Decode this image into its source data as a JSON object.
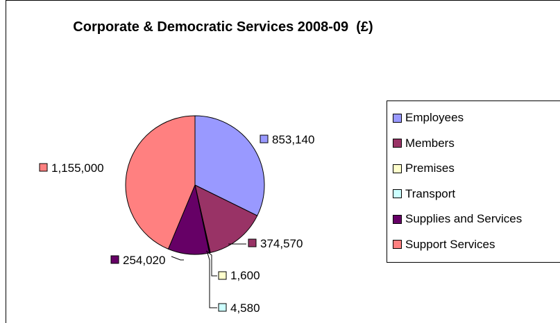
{
  "chart_data": {
    "type": "pie",
    "title": "Corporate & Democratic Services 2008-09  (£)",
    "slices": [
      {
        "label": "Employees",
        "value": 853140,
        "value_label": "853,140",
        "color": "#9999ff"
      },
      {
        "label": "Members",
        "value": 374570,
        "value_label": "374,570",
        "color": "#993366"
      },
      {
        "label": "Premises",
        "value": 1600,
        "value_label": "1,600",
        "color": "#ffffcc"
      },
      {
        "label": "Transport",
        "value": 4580,
        "value_label": "4,580",
        "color": "#ccffff"
      },
      {
        "label": "Supplies and Services",
        "value": 254020,
        "value_label": "254,020",
        "color": "#660066"
      },
      {
        "label": "Support Services",
        "value": 1155000,
        "value_label": "1,155,000",
        "color": "#ff8080"
      }
    ],
    "start_angle_deg": 0,
    "direction": "clockwise",
    "legend_position": "right"
  }
}
